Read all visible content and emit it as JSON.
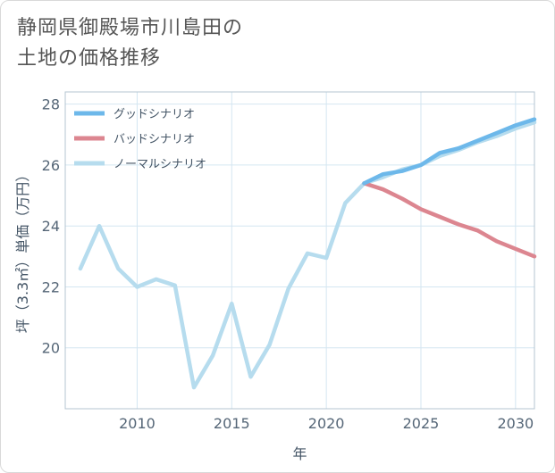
{
  "title_lines": [
    "静岡県御殿場市川島田の",
    "土地の価格推移"
  ],
  "colors": {
    "good": "#6db8ea",
    "bad": "#dc8690",
    "normal": "#b6dcee",
    "grid": "#d4e6f1",
    "frame": "#b4c4d0"
  },
  "chart_data": {
    "type": "line",
    "title": "静岡県御殿場市川島田の土地の価格推移",
    "xlabel": "年",
    "ylabel": "坪（3.3㎡）単価（万円）",
    "xlim": [
      2006.2,
      2031.0
    ],
    "ylim": [
      18.0,
      28.4
    ],
    "xticks": [
      2010,
      2015,
      2020,
      2025,
      2030
    ],
    "yticks": [
      20,
      22,
      24,
      26,
      28
    ],
    "legend_position": "top-left",
    "series": [
      {
        "name": "グッドシナリオ",
        "key": "good",
        "x": [
          2022,
          2023,
          2024,
          2025,
          2026,
          2027,
          2028,
          2029,
          2030,
          2031
        ],
        "y": [
          25.4,
          25.7,
          25.8,
          26.0,
          26.4,
          26.55,
          26.8,
          27.05,
          27.3,
          27.5
        ]
      },
      {
        "name": "バッドシナリオ",
        "key": "bad",
        "x": [
          2022,
          2023,
          2024,
          2025,
          2026,
          2027,
          2028,
          2029,
          2030,
          2031
        ],
        "y": [
          25.4,
          25.2,
          24.9,
          24.55,
          24.3,
          24.05,
          23.85,
          23.5,
          23.25,
          23.0
        ]
      },
      {
        "name": "ノーマルシナリオ",
        "key": "normal",
        "x": [
          2007,
          2008,
          2009,
          2010,
          2011,
          2012,
          2013,
          2014,
          2015,
          2016,
          2017,
          2018,
          2019,
          2020,
          2021,
          2022,
          2023,
          2024,
          2025,
          2026,
          2027,
          2028,
          2029,
          2030,
          2031
        ],
        "y": [
          22.6,
          24.0,
          22.6,
          22.0,
          22.25,
          22.05,
          18.7,
          19.75,
          21.45,
          19.05,
          20.1,
          21.95,
          23.1,
          22.95,
          24.75,
          25.4,
          25.6,
          25.85,
          26.0,
          26.3,
          26.5,
          26.75,
          26.95,
          27.2,
          27.4
        ]
      }
    ]
  }
}
